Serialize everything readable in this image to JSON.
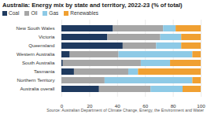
{
  "chart_data": {
    "type": "bar",
    "orientation": "horizontal",
    "stacked": true,
    "title": "Australia: Energy mix by state and territory, 2022-23 (% of total)",
    "caption": "Source: Australian Department of Climate Change, Energy, the Environment and Water",
    "categories": [
      "New South Wales",
      "Victoria",
      "Queensland",
      "Western Australia",
      "South Australia",
      "Tasmania",
      "Northern Territory",
      "Australia overall"
    ],
    "series": [
      {
        "name": "Coal",
        "color": "#1f3a5f",
        "values": [
          37,
          33,
          44,
          6,
          1,
          9,
          0,
          27
        ]
      },
      {
        "name": "Oil",
        "color": "#a6a6a6",
        "values": [
          36,
          38,
          24,
          35,
          56,
          39,
          31,
          37
        ]
      },
      {
        "name": "Gas",
        "color": "#8ecae6",
        "values": [
          9,
          15,
          18,
          53,
          21,
          7,
          63,
          23
        ]
      },
      {
        "name": "Renewables",
        "color": "#f0a032",
        "values": [
          18,
          14,
          14,
          6,
          22,
          45,
          6,
          13
        ]
      }
    ],
    "xlim": [
      0,
      100
    ],
    "xticks": [
      0,
      20,
      40,
      60,
      80,
      100
    ],
    "grid": true,
    "legend": "top-left"
  }
}
